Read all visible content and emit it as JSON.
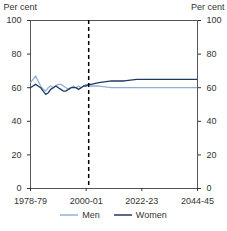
{
  "chart_data": {
    "type": "line",
    "x": [
      1978,
      1979,
      1980,
      1981,
      1982,
      1983,
      1984,
      1985,
      1986,
      1987,
      1988,
      1989,
      1990,
      1991,
      1992,
      1993,
      1994,
      1995,
      1996,
      1997,
      1998,
      1999,
      2000,
      2001,
      2002,
      2005,
      2010,
      2015,
      2020,
      2025,
      2030,
      2035,
      2040,
      2044
    ],
    "xlim": [
      1978,
      2044
    ],
    "xticks": [
      {
        "value": 1978,
        "label": "1978-79"
      },
      {
        "value": 2000,
        "label": "2000-01"
      },
      {
        "value": 2022,
        "label": "2022-23"
      },
      {
        "value": 2044,
        "label": "2044-45"
      }
    ],
    "ylim": [
      0,
      100
    ],
    "yticks": [
      0,
      20,
      40,
      60,
      80,
      100
    ],
    "y_label": "Per cent",
    "y2lim": [
      0,
      100
    ],
    "y2ticks": [
      0,
      20,
      40,
      60,
      80,
      100
    ],
    "y2_label": "Per cent",
    "vline": 2001,
    "grid": false,
    "legend": "bottom",
    "series": [
      {
        "name": "Men",
        "color": "#8fb0d6",
        "values": [
          63,
          65,
          67,
          64,
          61,
          59,
          58,
          60,
          61,
          60,
          61,
          62,
          62,
          61,
          60,
          59,
          60,
          61,
          60,
          61,
          60,
          61,
          62,
          61,
          61,
          61,
          60,
          60,
          60,
          60,
          60,
          60,
          60,
          60
        ]
      },
      {
        "name": "Women",
        "color": "#1f3a60",
        "values": [
          60,
          61,
          62,
          61,
          60,
          58,
          56,
          57,
          59,
          60,
          61,
          60,
          59,
          58,
          58,
          59,
          60,
          60,
          60,
          59,
          60,
          61,
          61,
          62,
          62,
          63,
          64,
          64,
          65,
          65,
          65,
          65,
          65,
          65
        ]
      }
    ]
  }
}
